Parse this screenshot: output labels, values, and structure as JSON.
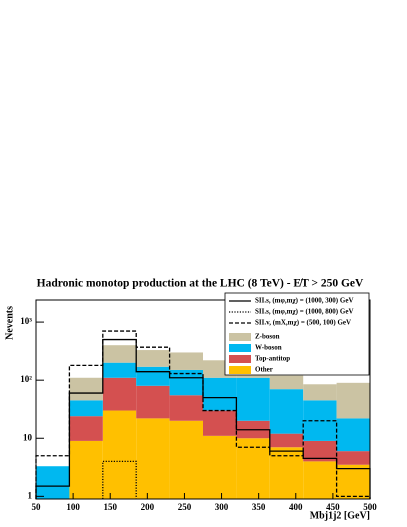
{
  "chart_data": {
    "type": "stacked-histogram",
    "title": "Hadronic monotop production at the LHC (8 TeV) - E̸T > 250 GeV",
    "xlabel": "Mbj1j2 [GeV]",
    "ylabel": "Nevents",
    "log_y": true,
    "bins": [
      50,
      95,
      140,
      185,
      230,
      275,
      320,
      365,
      410,
      455,
      500
    ],
    "xlim": [
      50,
      500
    ],
    "xticks": [
      50,
      100,
      150,
      200,
      250,
      300,
      350,
      400,
      450,
      500
    ],
    "ylim": [
      0.9,
      2400
    ],
    "yticks": [
      1,
      10,
      {
        "value": 100,
        "label": "10²"
      },
      {
        "value": 1000,
        "label": "10³"
      }
    ],
    "series": [
      {
        "name": "Other",
        "color": "#ffc000",
        "values": [
          0,
          9,
          30,
          22,
          20,
          11,
          10,
          7,
          4,
          3.5
        ]
      },
      {
        "name": "Top-antitop",
        "color": "#d45050",
        "values": [
          0,
          15,
          80,
          58,
          35,
          19,
          10,
          5,
          5,
          2.5
        ]
      },
      {
        "name": "W-boson",
        "color": "#00b8f0",
        "values": [
          3.3,
          21,
          90,
          90,
          95,
          80,
          90,
          58,
          36,
          16
        ]
      },
      {
        "name": "Z-boson",
        "color": "#cbc3a3",
        "values": [
          0,
          65,
          200,
          160,
          150,
          110,
          70,
          50,
          40,
          68
        ]
      }
    ],
    "lines": [
      {
        "name": "SII.s, (mφ,mχ) = (1000, 300) GeV",
        "style": "solid",
        "values": [
          1.5,
          60,
          500,
          140,
          110,
          50,
          14,
          6,
          4.5,
          3
        ]
      },
      {
        "name": "SII.s, (mφ,mχ) = (1000, 800) GeV",
        "style": "dotted",
        "values": [
          null,
          null,
          4,
          null,
          null,
          null,
          null,
          null,
          null,
          null
        ]
      },
      {
        "name": "SII.v, (mX,mχ) = (500, 100) GeV",
        "style": "dashed",
        "values": [
          5,
          180,
          700,
          370,
          130,
          30,
          7,
          5,
          20,
          1
        ]
      }
    ]
  }
}
